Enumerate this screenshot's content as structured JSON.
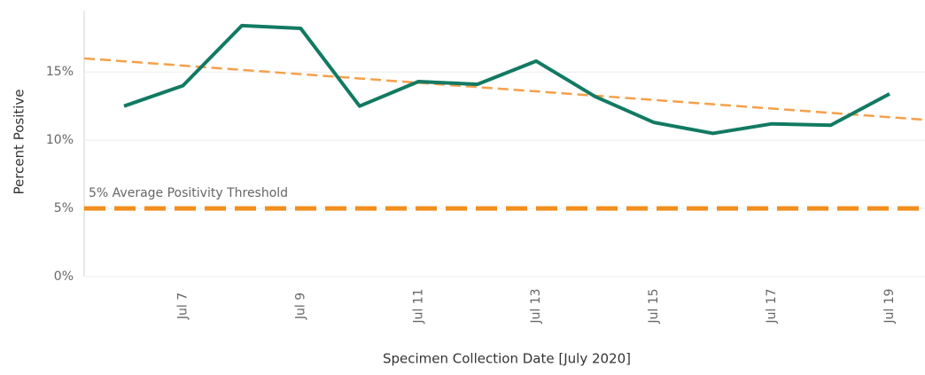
{
  "chart_data": {
    "type": "line",
    "y_label": "Percent Positive",
    "x_label": "Specimen Collection Date [July 2020]",
    "categories": [
      null,
      "Jul 7",
      null,
      "Jul 9",
      null,
      "Jul 11",
      null,
      "Jul 13",
      null,
      "Jul 15",
      null,
      "Jul 17",
      null,
      "Jul 19"
    ],
    "values": [
      12.5,
      14.0,
      18.4,
      18.2,
      12.5,
      14.3,
      14.1,
      15.8,
      13.2,
      11.3,
      10.5,
      11.2,
      11.1,
      13.4
    ],
    "color": "#127a62",
    "trend": {
      "start": 16.0,
      "end": 11.5,
      "color": "#f5a04a"
    },
    "threshold": {
      "value": 5,
      "label": "5% Average Positivity Threshold",
      "color": "#f28e1c"
    },
    "ylim": [
      0,
      19.5
    ],
    "yticks": [
      {
        "value": 0,
        "label": "0%"
      },
      {
        "value": 5,
        "label": "5%"
      },
      {
        "value": 10,
        "label": "10%"
      },
      {
        "value": 15,
        "label": "15%"
      }
    ],
    "grid": true
  }
}
